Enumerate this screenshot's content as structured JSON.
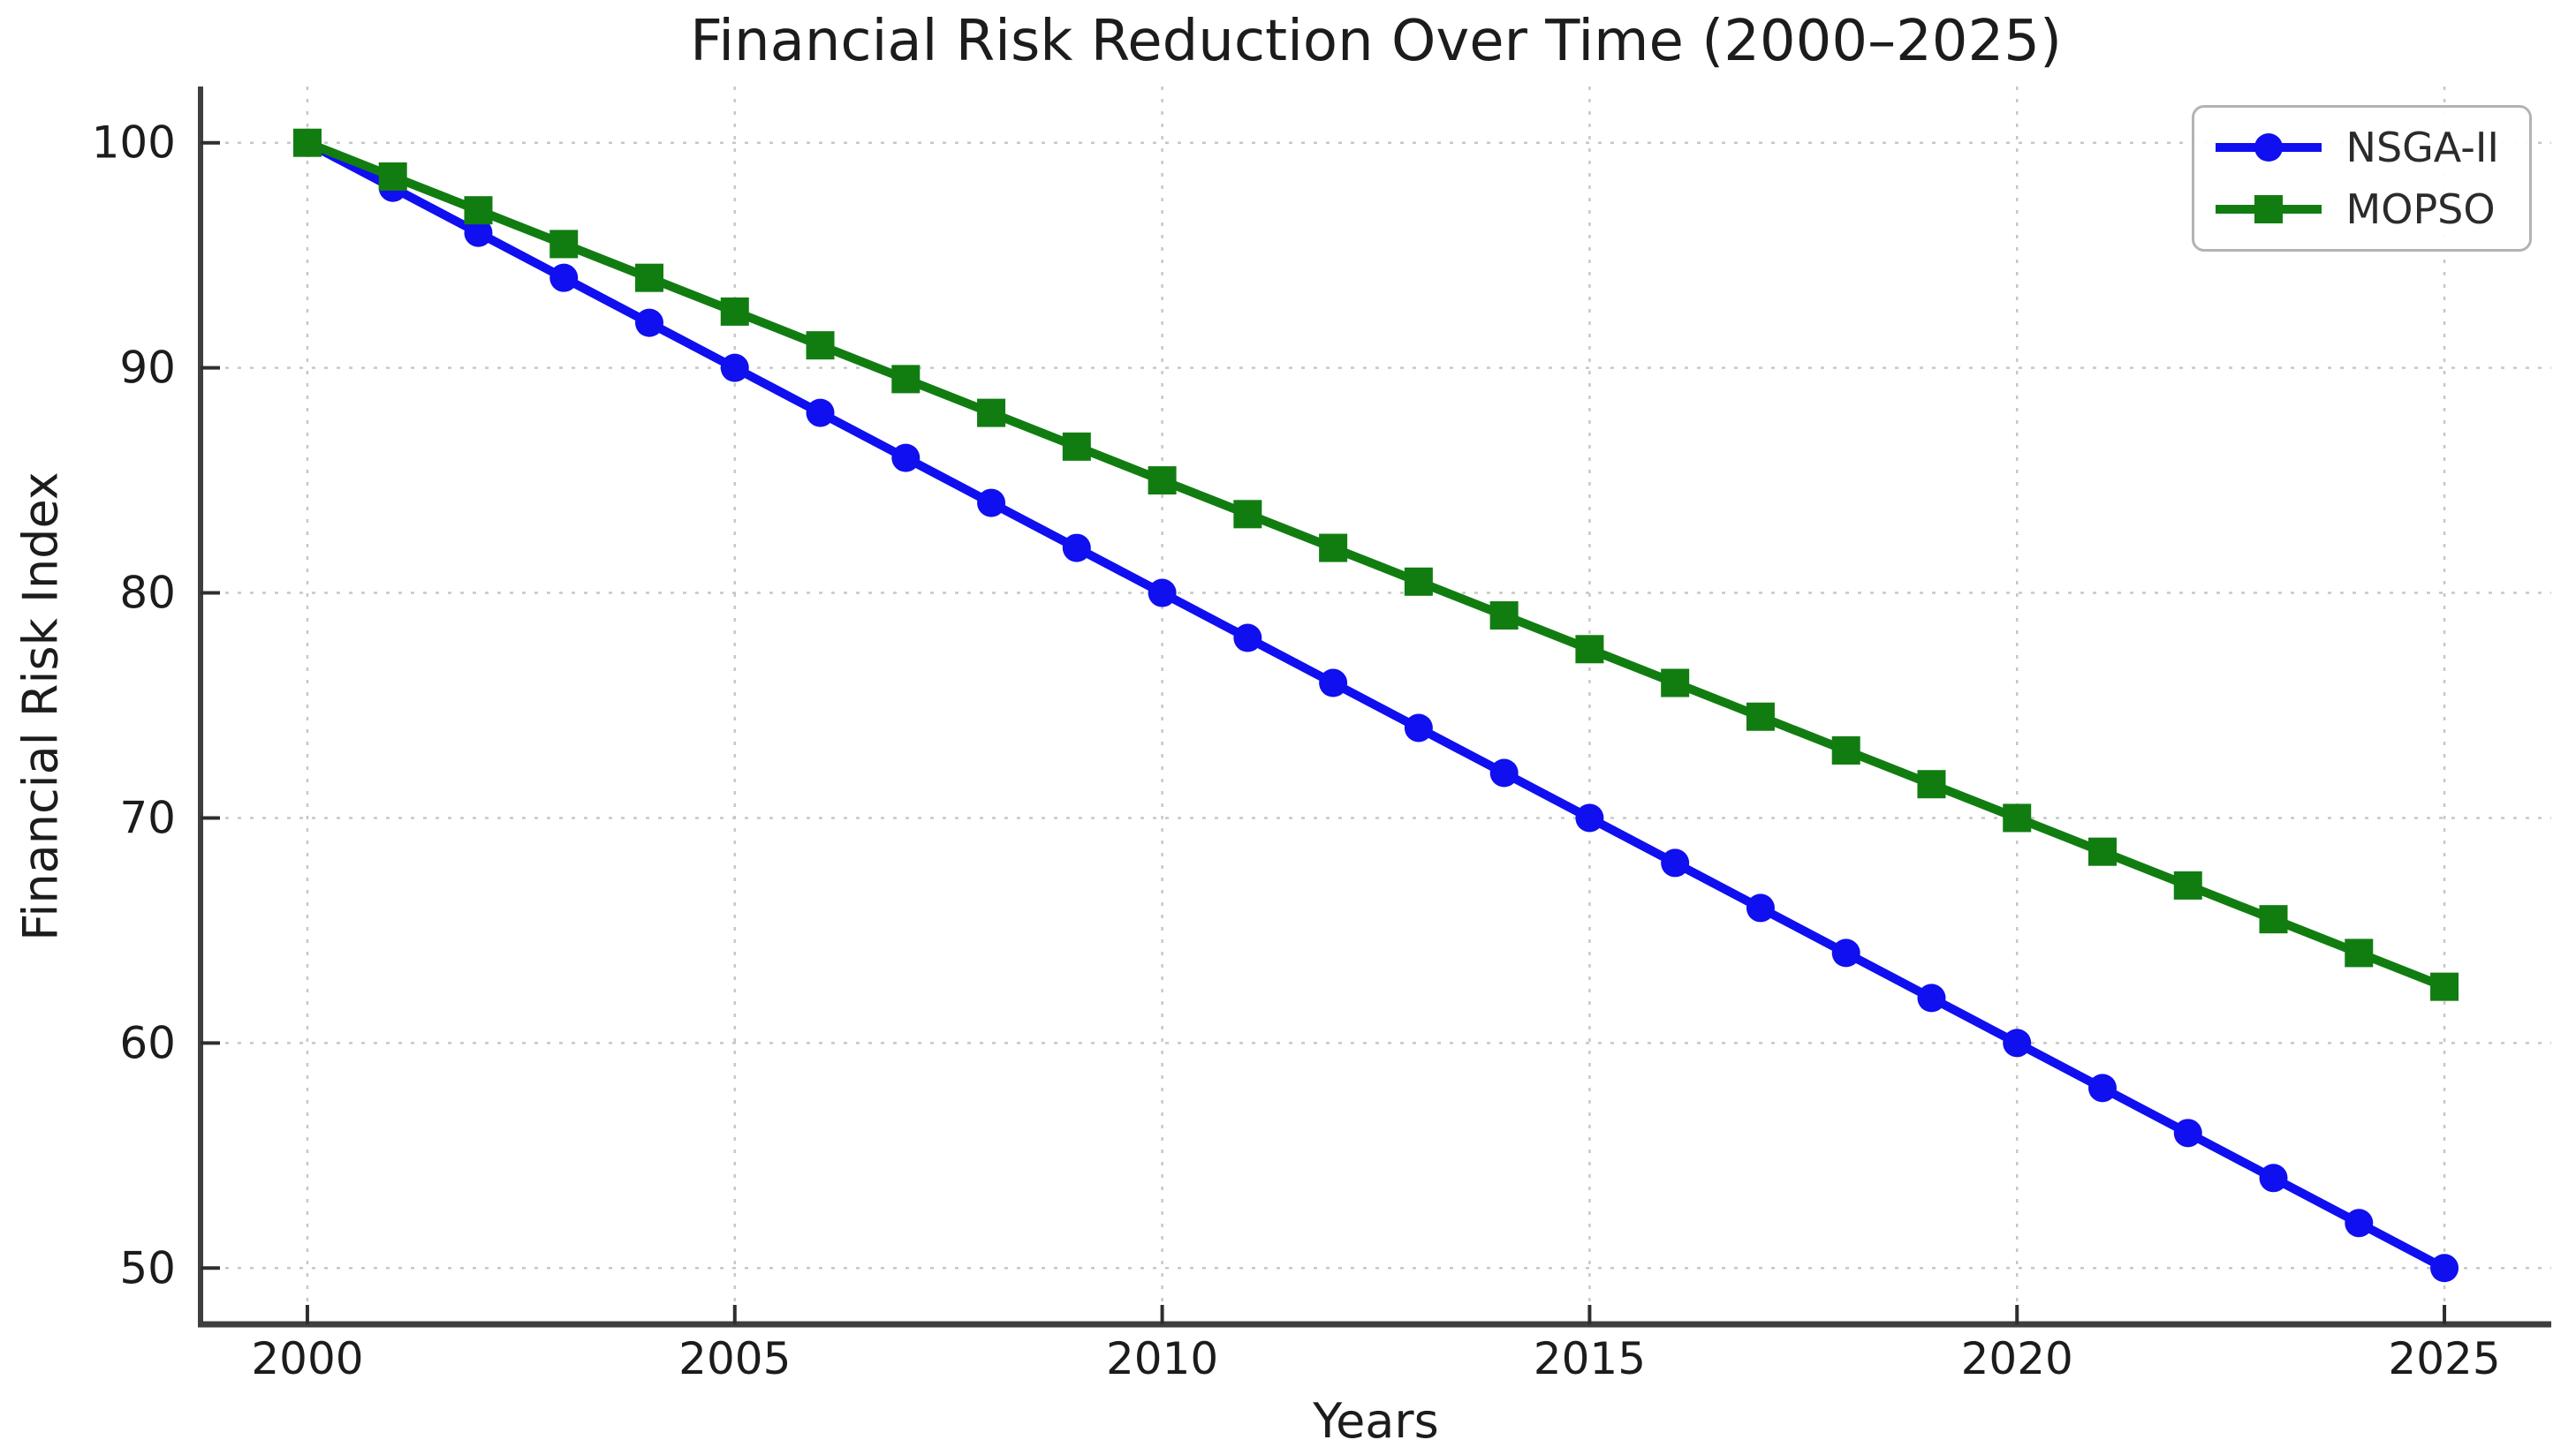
{
  "chart_data": {
    "type": "line",
    "title": "Financial Risk Reduction Over Time (2000–2025)",
    "xlabel": "Years",
    "ylabel": "Financial Risk Index",
    "x": [
      2000,
      2001,
      2002,
      2003,
      2004,
      2005,
      2006,
      2007,
      2008,
      2009,
      2010,
      2011,
      2012,
      2013,
      2014,
      2015,
      2016,
      2017,
      2018,
      2019,
      2020,
      2021,
      2022,
      2023,
      2024,
      2025
    ],
    "series": [
      {
        "name": "NSGA-II",
        "color": "#0f0ff0",
        "marker": "circle",
        "values": [
          100,
          98,
          96,
          94,
          92,
          90,
          88,
          86,
          84,
          82,
          80,
          78,
          76,
          74,
          72,
          70,
          68,
          66,
          64,
          62,
          60,
          58,
          56,
          54,
          52,
          50
        ]
      },
      {
        "name": "MOPSO",
        "color": "#117d11",
        "marker": "square",
        "values": [
          100,
          98.5,
          97,
          95.5,
          94,
          92.5,
          91,
          89.5,
          88,
          86.5,
          85,
          83.5,
          82,
          80.5,
          79,
          77.5,
          76,
          74.5,
          73,
          71.5,
          70,
          68.5,
          67,
          65.5,
          64,
          62.5
        ]
      }
    ],
    "xticks": [
      2000,
      2005,
      2010,
      2015,
      2020,
      2025
    ],
    "yticks": [
      50,
      60,
      70,
      80,
      90,
      100
    ],
    "xlim": [
      1998.75,
      2026.25
    ],
    "ylim": [
      47.5,
      102.5
    ],
    "grid": true,
    "legend_position": "upper right",
    "grid_color": "#c7c7c7",
    "spine_color": "#3f3f3f",
    "tick_color": "#2e2e2e",
    "text_color": "#1c1c1c"
  }
}
